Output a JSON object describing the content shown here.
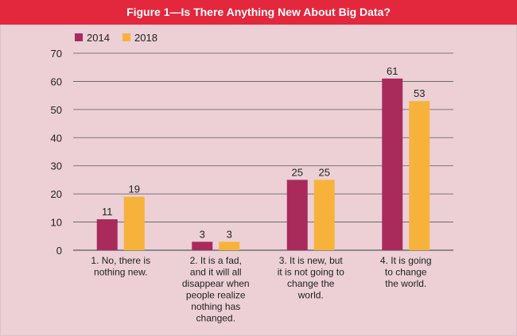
{
  "chart_data": {
    "type": "bar",
    "title": "Figure 1—Is There Anything New About Big Data?",
    "categories": [
      [
        "1. No, there is",
        "nothing new."
      ],
      [
        "2. It is a fad,",
        "and it will all",
        "disappear when",
        "people realize",
        "nothing has",
        "changed."
      ],
      [
        "3. It is new, but",
        "it is not going to",
        "change the",
        "world."
      ],
      [
        "4. It is going",
        "to change",
        "the world."
      ]
    ],
    "series": [
      {
        "name": "2014",
        "values": [
          11,
          3,
          25,
          61
        ],
        "color": "#a82b5c"
      },
      {
        "name": "2018",
        "values": [
          19,
          3,
          25,
          53
        ],
        "color": "#f7b23c"
      }
    ],
    "ylim": [
      0,
      70
    ],
    "yticks": [
      0,
      10,
      20,
      30,
      40,
      50,
      60,
      70
    ],
    "xlabel": "",
    "ylabel": "",
    "legend": "top-left",
    "grid": true
  },
  "colors": {
    "title_bar": "#e3273d",
    "background": "#ecd0d6",
    "gridline": "#5a5a5a"
  }
}
